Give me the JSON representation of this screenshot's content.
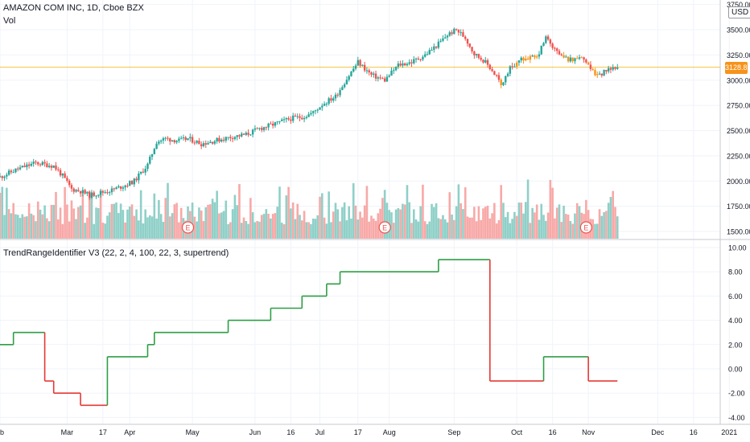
{
  "header": {
    "symbol_line": "AMAZON COM INC, 1D, Cboe BZX",
    "volume_label": "Vol",
    "currency": "USD",
    "last_price": "3128.81",
    "earnings_marker": "E"
  },
  "colors": {
    "up": "#26a69a",
    "down": "#ef5350",
    "vol_up": "#8fd0c8",
    "vol_down": "#f7a9a7",
    "hollow_orange": "#f7931a",
    "price_line": "#f5c242",
    "indicator_up": "#2e9e44",
    "indicator_down": "#e53935",
    "grid": "#f0f3fa",
    "axis_text": "#131722"
  },
  "chart_data": [
    {
      "type": "candlestick",
      "title": "AMAZON COM INC, 1D, Cboe BZX",
      "ylim": [
        1420,
        3620
      ],
      "y_ticks": [
        "3750.00",
        "3500.00",
        "3250.00",
        "3000.00",
        "2750.00",
        "2500.00",
        "2250.00",
        "2000.00",
        "1750.00",
        "1500.00"
      ],
      "y_tick_values": [
        3750,
        3500,
        3250,
        3000,
        2750,
        2500,
        2250,
        2000,
        1750,
        1500
      ],
      "x_ticks": [
        "b",
        "Mar",
        "17",
        "Apr",
        "May",
        "Jun",
        "16",
        "Jul",
        "17",
        "Aug",
        "Sep",
        "Oct",
        "16",
        "Nov",
        "Dec",
        "16",
        "2021"
      ],
      "x_tick_days": [
        0,
        30,
        46,
        58,
        86,
        114,
        130,
        143,
        160,
        174,
        203,
        231,
        247,
        263,
        294,
        310,
        326
      ],
      "last_price": 3128.81,
      "price_path": {
        "days": [
          0,
          8,
          16,
          24,
          28,
          32,
          36,
          40,
          44,
          50,
          56,
          60,
          66,
          70,
          74,
          80,
          84,
          90,
          96,
          104,
          110,
          116,
          122,
          130,
          136,
          140,
          144,
          150,
          154,
          160,
          166,
          172,
          178,
          184,
          190,
          196,
          200,
          204,
          208,
          212,
          216,
          220,
          224,
          228,
          234,
          240,
          244,
          248,
          252,
          256,
          260,
          264,
          268,
          272,
          276
        ],
        "close": [
          2040,
          2120,
          2180,
          2150,
          2050,
          1920,
          1900,
          1860,
          1880,
          1910,
          1960,
          2000,
          2160,
          2390,
          2420,
          2400,
          2420,
          2370,
          2400,
          2440,
          2460,
          2520,
          2560,
          2620,
          2640,
          2680,
          2760,
          2840,
          2980,
          3180,
          3050,
          3000,
          3150,
          3180,
          3250,
          3360,
          3450,
          3500,
          3420,
          3260,
          3200,
          3100,
          2950,
          3120,
          3220,
          3220,
          3420,
          3300,
          3220,
          3200,
          3250,
          3090,
          3050,
          3120,
          3128.81
        ]
      },
      "volume": {
        "visible_range_approx": [
          1450,
          2000
        ],
        "earnings_markers_days": [
          84,
          172,
          262
        ]
      }
    },
    {
      "type": "line",
      "title": "TrendRangeIdentifier V3 (22, 2, 4, 100, 22, 3, supertrend)",
      "ylim": [
        -4,
        10
      ],
      "y_ticks": [
        "10.00",
        "8.00",
        "6.00",
        "4.00",
        "2.00",
        "0.00",
        "-2.00",
        "-4.00"
      ],
      "y_tick_values": [
        10,
        8,
        6,
        4,
        2,
        0,
        -2,
        -4
      ],
      "step_series": [
        {
          "x": 0,
          "y": 2
        },
        {
          "x": 6,
          "y": 3
        },
        {
          "x": 20,
          "y": -1
        },
        {
          "x": 24,
          "y": -2
        },
        {
          "x": 36,
          "y": -3
        },
        {
          "x": 48,
          "y": 1
        },
        {
          "x": 66,
          "y": 2
        },
        {
          "x": 69,
          "y": 3
        },
        {
          "x": 102,
          "y": 4
        },
        {
          "x": 121,
          "y": 5
        },
        {
          "x": 135,
          "y": 6
        },
        {
          "x": 146,
          "y": 7
        },
        {
          "x": 152,
          "y": 8
        },
        {
          "x": 196,
          "y": 9
        },
        {
          "x": 219,
          "y": -1
        },
        {
          "x": 243,
          "y": 1
        },
        {
          "x": 263,
          "y": -1
        },
        {
          "x": 276,
          "y": -1
        }
      ]
    }
  ]
}
